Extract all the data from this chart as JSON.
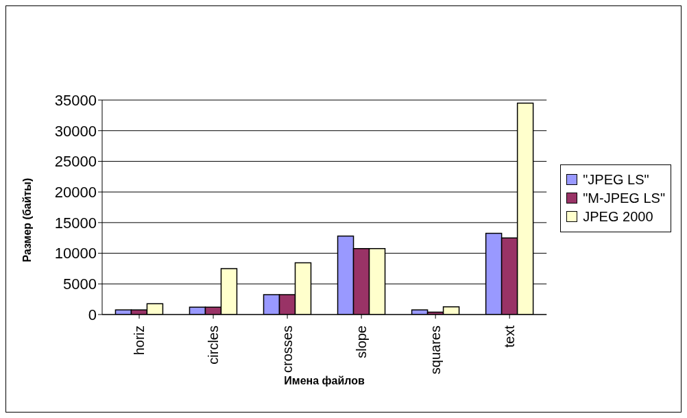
{
  "chart_data": {
    "type": "bar",
    "xlabel": "Имена файлов",
    "ylabel": "Размер (байты)",
    "categories": [
      "horiz",
      "circles",
      "crosses",
      "slope",
      "squares",
      "text"
    ],
    "series": [
      {
        "name": "\"JPEG LS\"",
        "color": "#9999ff",
        "values": [
          750,
          1200,
          3250,
          12800,
          750,
          13250
        ]
      },
      {
        "name": "\"M-JPEG LS\"",
        "color": "#993366",
        "values": [
          750,
          1200,
          3250,
          10750,
          400,
          12500
        ]
      },
      {
        "name": "JPEG 2000",
        "color": "#ffffcc",
        "values": [
          1750,
          7500,
          8450,
          10750,
          1250,
          34500
        ]
      }
    ],
    "ylim": [
      0,
      35000
    ],
    "yticks": [
      0,
      5000,
      10000,
      15000,
      20000,
      25000,
      30000,
      35000
    ],
    "grid": "y",
    "legend": "right"
  }
}
